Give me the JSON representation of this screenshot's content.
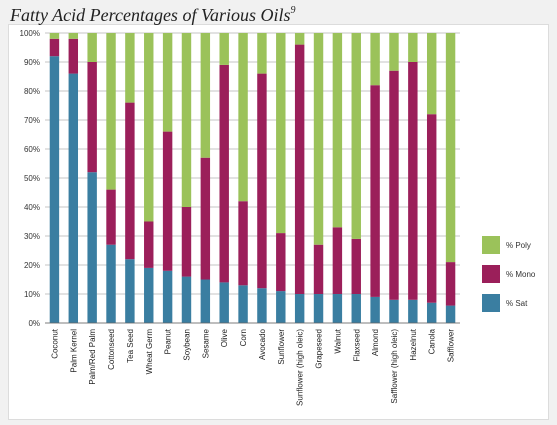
{
  "chart_data": {
    "type": "bar",
    "stacked": true,
    "title": "Fatty Acid Percentages of Various Oils",
    "title_superscript": "9",
    "xlabel": "",
    "ylabel": "",
    "ylim": [
      0,
      100
    ],
    "y_ticks": [
      "0%",
      "10%",
      "20%",
      "30%",
      "40%",
      "50%",
      "60%",
      "70%",
      "80%",
      "90%",
      "100%"
    ],
    "grid": true,
    "legend_position": "right",
    "categories": [
      "Coconut",
      "Palm Kernel",
      "Palm/Red Palm",
      "Cottonseed",
      "Tea Seed",
      "Wheat Germ",
      "Peanut",
      "Soybean",
      "Sesame",
      "Olive",
      "Corn",
      "Avocado",
      "Sunflower",
      "Sunflower (high oleic)",
      "Grapeseed",
      "Walnut",
      "Flaxseed",
      "Almond",
      "Safflower (high oleic)",
      "Hazelnut",
      "Canola",
      "Safflower"
    ],
    "series": [
      {
        "name": "% Sat",
        "color": "#3a7ea1",
        "values": [
          92,
          86,
          52,
          27,
          22,
          19,
          18,
          16,
          15,
          14,
          13,
          12,
          11,
          10,
          10,
          10,
          10,
          9,
          8,
          8,
          7,
          6
        ]
      },
      {
        "name": "% Mono",
        "color": "#9b1f5a",
        "values": [
          6,
          12,
          38,
          19,
          54,
          16,
          48,
          24,
          42,
          75,
          29,
          74,
          20,
          86,
          17,
          23,
          19,
          73,
          79,
          82,
          65,
          15
        ]
      },
      {
        "name": "% Poly",
        "color": "#9bc25a",
        "values": [
          2,
          2,
          10,
          54,
          24,
          65,
          34,
          60,
          43,
          11,
          58,
          14,
          69,
          4,
          73,
          67,
          71,
          18,
          13,
          10,
          28,
          79
        ]
      }
    ],
    "legend_order": [
      "% Poly",
      "% Mono",
      "% Sat"
    ]
  }
}
